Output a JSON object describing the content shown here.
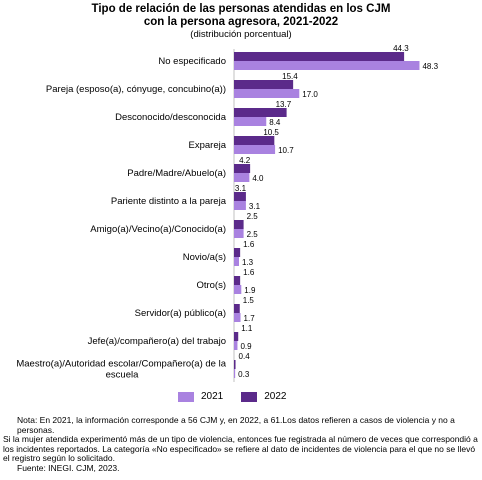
{
  "header": {
    "title_line1": "Tipo de relación de las personas atendidas en los CJM",
    "title_line2": "con la persona agresora, 2021-2022",
    "subtitle": "(distribución porcentual)"
  },
  "legend": {
    "items": [
      {
        "label": "2021",
        "color": "#a982e0"
      },
      {
        "label": "2022",
        "color": "#5b2a8a"
      }
    ]
  },
  "notes": {
    "note1": "Nota: En 2021, la información corresponde a 56 CJM y, en 2022, a 61.Los datos refieren a casos de violencia y no a personas.",
    "note2": "Si la mujer atendida experimentó más de un tipo de violencia, entonces fue registrada al número de veces que correspondió a los incidentes reportados. La categoría «No especificado» se refiere al dato de incidentes de violencia para el que no se llevó el registro según lo solicitado.",
    "source": "Fuente: INEGI. CJM, 2023."
  },
  "chart_data": {
    "type": "bar",
    "orientation": "horizontal",
    "title": "Tipo de relación de las personas atendidas en los CJM con la persona agresora, 2021-2022",
    "subtitle": "(distribución porcentual)",
    "categories": [
      "No especificado",
      "Pareja (esposo(a), cónyuge, concubino(a))",
      "Desconocido/desconocida",
      "Expareja",
      "Padre/Madre/Abuelo(a)",
      "Pariente distinto a la pareja",
      "Amigo(a)/Vecino(a)/Conocido(a)",
      "Novio/a(s)",
      "Otro(s)",
      "Servidor(a) público(a)",
      "Jefe(a)/compañero(a) del trabajo",
      "Maestro(a)/Autoridad escolar/Compañero(a) de la escuela"
    ],
    "series": [
      {
        "name": "2022",
        "color": "#5b2a8a",
        "values": [
          44.3,
          15.4,
          13.7,
          10.5,
          4.2,
          3.1,
          2.5,
          1.6,
          1.6,
          1.5,
          1.1,
          0.4
        ]
      },
      {
        "name": "2021",
        "color": "#a982e0",
        "values": [
          48.3,
          17.0,
          8.4,
          10.7,
          4.0,
          3.1,
          2.5,
          1.3,
          1.9,
          1.7,
          0.9,
          0.3
        ]
      }
    ],
    "legend_position": "bottom",
    "grid": false,
    "xlim": [
      0,
      50
    ]
  }
}
